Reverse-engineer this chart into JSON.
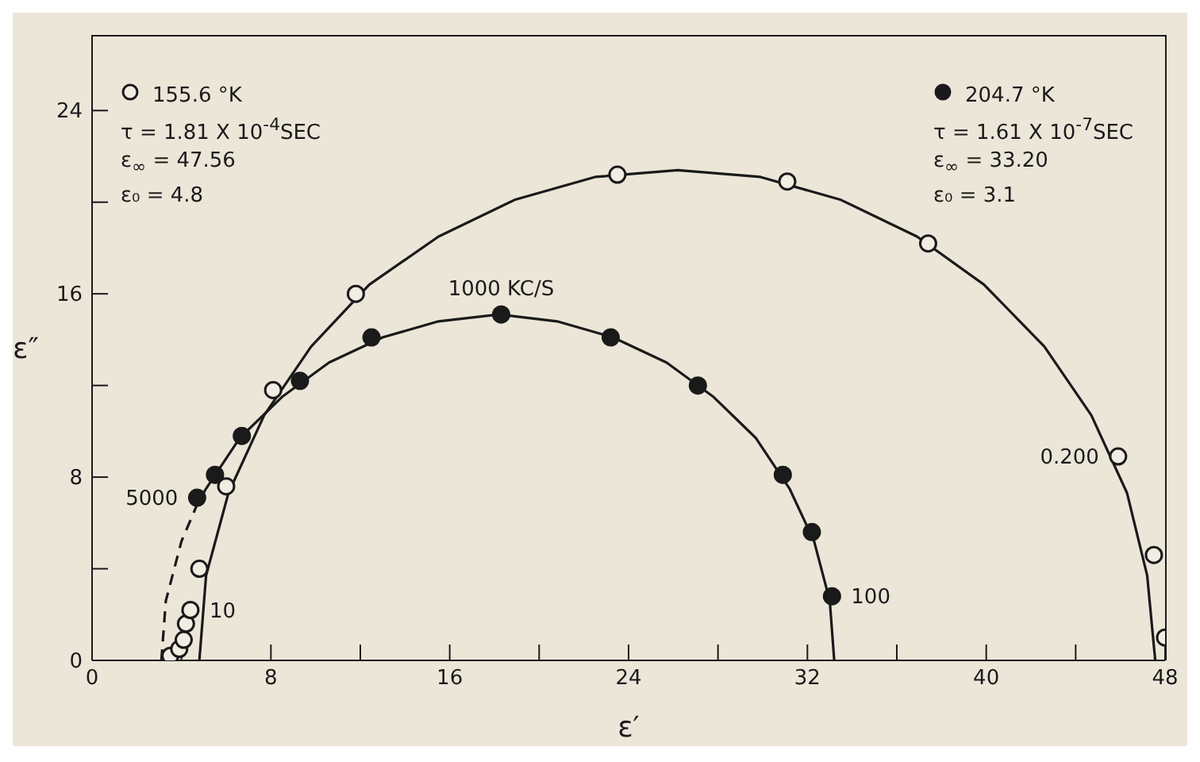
{
  "chart_data": {
    "type": "scatter",
    "xlabel": "ε′",
    "ylabel": "ε″",
    "xlim": [
      0,
      48
    ],
    "xticks": [
      0,
      {
        "value": 4,
        "label": null
      },
      8,
      {
        "value": 12,
        "label": null
      },
      16,
      {
        "value": 20,
        "label": null
      },
      24,
      {
        "value": 28,
        "label": null
      },
      32,
      {
        "value": 36,
        "label": null
      },
      40,
      {
        "value": 44,
        "label": null
      },
      48
    ],
    "ylim": [
      0,
      27.3
    ],
    "yticks": [
      0,
      {
        "value": 4,
        "label": null
      },
      8,
      {
        "value": 12,
        "label": null
      },
      16,
      {
        "value": 20,
        "label": null
      },
      24
    ],
    "legend": "top",
    "marker": "circle",
    "line_style": "solid",
    "series": [
      {
        "name": "155.6 °K",
        "color": "#f2ede3",
        "x": [
          3.5,
          3.9,
          4.1,
          4.2,
          4.4,
          4.8,
          6.0,
          8.1,
          11.8,
          23.5,
          31.1,
          37.4,
          45.9,
          47.5,
          48.0
        ],
        "values": [
          0.2,
          0.5,
          0.9,
          1.6,
          2.2,
          4.0,
          7.6,
          11.8,
          16.0,
          21.2,
          20.9,
          18.2,
          8.9,
          4.6,
          1.0
        ]
      },
      {
        "name": "204.7 °K",
        "color": "#1a1a1a",
        "x": [
          4.7,
          5.5,
          6.7,
          9.3,
          12.5,
          18.3,
          23.2,
          27.1,
          30.9,
          32.2,
          33.1
        ],
        "values": [
          7.1,
          8.1,
          9.8,
          12.2,
          14.1,
          15.1,
          14.1,
          12.0,
          8.1,
          5.6,
          2.8
        ]
      },
      {
        "type": "line",
        "marker": "none",
        "color": "#1a1a1a",
        "x": [
          4.8,
          5.1,
          6.1,
          7.7,
          9.8,
          12.4,
          15.5,
          18.9,
          22.5,
          26.2,
          29.9,
          33.5,
          36.9,
          39.9,
          42.6,
          44.7,
          46.3,
          47.2,
          47.56
        ],
        "values": [
          0,
          3.7,
          7.3,
          10.7,
          13.7,
          16.4,
          18.5,
          20.1,
          21.1,
          21.4,
          21.1,
          20.1,
          18.5,
          16.4,
          13.7,
          10.7,
          7.3,
          3.7,
          0
        ]
      },
      {
        "type": "line",
        "marker": "none",
        "color": "#1a1a1a",
        "line_style": "dashed",
        "x": [
          3.1,
          3.3,
          4.0,
          4.7
        ],
        "values": [
          0,
          2.6,
          5.2,
          6.8
        ]
      },
      {
        "type": "line",
        "marker": "none",
        "color": "#1a1a1a",
        "x": [
          4.7,
          5.1,
          6.6,
          8.5,
          10.6,
          13.0,
          15.5,
          18.2,
          20.8,
          23.3,
          25.7,
          27.8,
          29.7,
          31.2,
          32.3,
          33.0,
          33.2
        ],
        "values": [
          6.8,
          7.5,
          9.7,
          11.5,
          13.0,
          14.1,
          14.8,
          15.1,
          14.8,
          14.1,
          13.0,
          11.5,
          9.7,
          7.5,
          5.2,
          2.6,
          0
        ]
      }
    ],
    "annotations": [
      "τ = 1.81 X 10$^{-4}$SEC",
      "ε$_{∞}$ = 47.56",
      "ε₀ = 4.8",
      "τ = 1.61 X 10$^{-7}$SEC",
      "ε$_{∞}$ = 33.20",
      "ε₀ = 3.1",
      {
        "text": "1000 KC/S",
        "x": 18.3,
        "y": 15.1
      },
      {
        "text": "5000",
        "x": 4.7,
        "y": 7.1
      },
      {
        "text": "10",
        "x": 4.4,
        "y": 2.2
      },
      {
        "text": "100",
        "x": 33.1,
        "y": 2.8
      },
      {
        "text": "0.200",
        "x": 45.9,
        "y": 8.9
      }
    ]
  }
}
